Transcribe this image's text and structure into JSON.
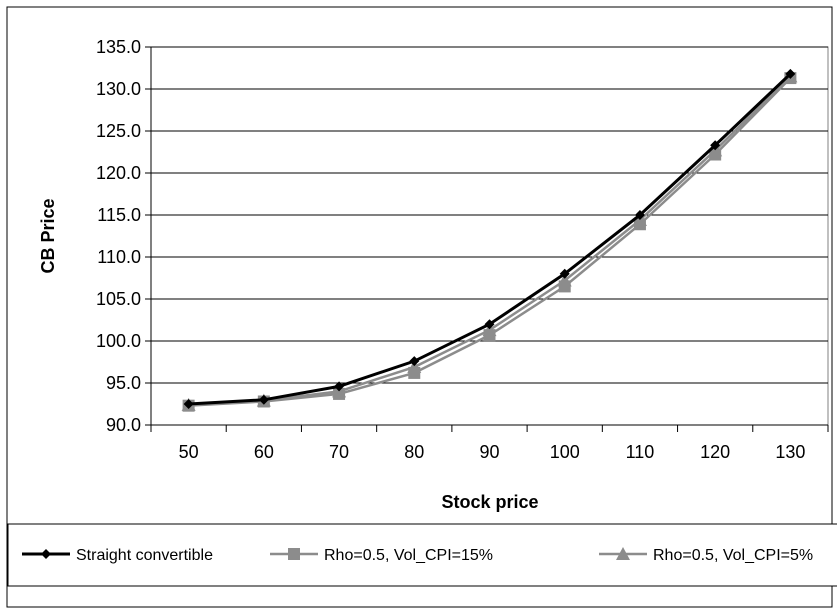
{
  "chart_data": {
    "type": "line",
    "title": "",
    "xlabel": "Stock price",
    "ylabel": "CB Price",
    "x": [
      50,
      60,
      70,
      80,
      90,
      100,
      110,
      120,
      130
    ],
    "ylim": [
      90.0,
      135.0
    ],
    "yticks": [
      "90.0",
      "95.0",
      "100.0",
      "105.0",
      "110.0",
      "115.0",
      "120.0",
      "125.0",
      "130.0",
      "135.0"
    ],
    "xticks": [
      "50",
      "60",
      "70",
      "80",
      "90",
      "100",
      "110",
      "120",
      "130"
    ],
    "grid": "horizontal",
    "legend_position": "bottom",
    "series": [
      {
        "name": "Straight convertible",
        "marker": "diamond",
        "color": "#000000",
        "values": [
          92.5,
          93.0,
          94.6,
          97.6,
          102.0,
          108.0,
          115.0,
          123.3,
          131.8
        ]
      },
      {
        "name": "Rho=0.5, Vol_CPI=15%",
        "marker": "square",
        "color": "#8c8c8c",
        "values": [
          92.3,
          92.8,
          93.7,
          96.2,
          100.7,
          106.5,
          113.9,
          122.2,
          131.3
        ]
      },
      {
        "name": "Rho=0.5, Vol_CPI=5%",
        "marker": "triangle",
        "color": "#8c8c8c",
        "values": [
          92.4,
          92.9,
          94.0,
          96.9,
          101.3,
          107.2,
          114.4,
          122.7,
          131.5
        ]
      }
    ]
  }
}
